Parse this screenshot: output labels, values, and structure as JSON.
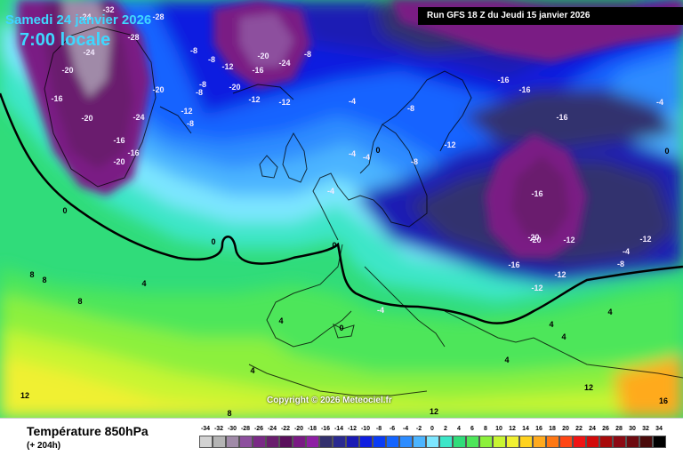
{
  "header": {
    "date": "Samedi 24 janvier 2026",
    "time": "7:00 locale",
    "run": "Run GFS 18 Z du Jeudi 15 janvier 2026"
  },
  "copyright": "Copyright © 2026 Meteociel.fr",
  "legend": {
    "title": "Température 850hPa",
    "subtitle": "(+ 204h)",
    "scale": [
      {
        "value": "-34",
        "color": "#d2d2d2"
      },
      {
        "value": "-32",
        "color": "#b4b4b4"
      },
      {
        "value": "-30",
        "color": "#a08aa8"
      },
      {
        "value": "-28",
        "color": "#8d4f9e"
      },
      {
        "value": "-26",
        "color": "#7a2a86"
      },
      {
        "value": "-24",
        "color": "#6a1e6e"
      },
      {
        "value": "-22",
        "color": "#5a0f5c"
      },
      {
        "value": "-20",
        "color": "#7a1a84"
      },
      {
        "value": "-18",
        "color": "#8e1fa4"
      },
      {
        "value": "-16",
        "color": "#33306e"
      },
      {
        "value": "-14",
        "color": "#2a2a90"
      },
      {
        "value": "-12",
        "color": "#1a1ab4"
      },
      {
        "value": "-10",
        "color": "#0f1ee0"
      },
      {
        "value": "-8",
        "color": "#0a3cf5"
      },
      {
        "value": "-6",
        "color": "#1464ff"
      },
      {
        "value": "-4",
        "color": "#2d8cff"
      },
      {
        "value": "-2",
        "color": "#4cb4ff"
      },
      {
        "value": "0",
        "color": "#7de6ff"
      },
      {
        "value": "2",
        "color": "#3ce6c8"
      },
      {
        "value": "4",
        "color": "#30dc7a"
      },
      {
        "value": "6",
        "color": "#4ee65a"
      },
      {
        "value": "8",
        "color": "#8cf03c"
      },
      {
        "value": "10",
        "color": "#c8f532"
      },
      {
        "value": "12",
        "color": "#f0f032"
      },
      {
        "value": "14",
        "color": "#ffd21e"
      },
      {
        "value": "16",
        "color": "#ffaa1e"
      },
      {
        "value": "18",
        "color": "#ff7814"
      },
      {
        "value": "20",
        "color": "#ff4614"
      },
      {
        "value": "22",
        "color": "#f01414"
      },
      {
        "value": "24",
        "color": "#d20a0a"
      },
      {
        "value": "26",
        "color": "#a80a0a"
      },
      {
        "value": "28",
        "color": "#8c0a14"
      },
      {
        "value": "30",
        "color": "#6e0a10"
      },
      {
        "value": "32",
        "color": "#4a0a0a"
      },
      {
        "value": "34",
        "color": "#000000"
      }
    ]
  },
  "isotherm_labels": [
    {
      "text": "-24"
    },
    {
      "text": "-32"
    },
    {
      "text": "-28"
    },
    {
      "text": "-28"
    },
    {
      "text": "-20"
    },
    {
      "text": "-16"
    },
    {
      "text": "-20"
    },
    {
      "text": "-24"
    },
    {
      "text": "-16"
    },
    {
      "text": "-20"
    },
    {
      "text": "-16"
    },
    {
      "text": "-24"
    },
    {
      "text": "-20"
    },
    {
      "text": "-8"
    },
    {
      "text": "-8"
    },
    {
      "text": "-12"
    },
    {
      "text": "-8"
    },
    {
      "text": "-20"
    },
    {
      "text": "-8"
    },
    {
      "text": "-12"
    },
    {
      "text": "-16"
    },
    {
      "text": "-20"
    },
    {
      "text": "-24"
    },
    {
      "text": "-8"
    },
    {
      "text": "-12"
    },
    {
      "text": "-8"
    },
    {
      "text": "-4"
    },
    {
      "text": "-8"
    },
    {
      "text": "-12"
    },
    {
      "text": "-4"
    },
    {
      "text": "0"
    },
    {
      "text": "-8"
    },
    {
      "text": "-4"
    },
    {
      "text": "-12"
    },
    {
      "text": "-16"
    },
    {
      "text": "-16"
    },
    {
      "text": "-16"
    },
    {
      "text": "-16"
    },
    {
      "text": "-20"
    },
    {
      "text": "-12"
    },
    {
      "text": "-16"
    },
    {
      "text": "-12"
    },
    {
      "text": "-4"
    },
    {
      "text": "-4"
    },
    {
      "text": "0"
    },
    {
      "text": "0"
    },
    {
      "text": "0"
    },
    {
      "text": "0"
    },
    {
      "text": "4"
    },
    {
      "text": "8"
    },
    {
      "text": "8"
    },
    {
      "text": "8"
    },
    {
      "text": "4"
    },
    {
      "text": "4"
    },
    {
      "text": "4"
    },
    {
      "text": "4"
    },
    {
      "text": "12"
    },
    {
      "text": "12"
    },
    {
      "text": "12"
    },
    {
      "text": "16"
    },
    {
      "text": "8"
    },
    {
      "text": "-12"
    },
    {
      "text": "-4"
    },
    {
      "text": "-20"
    },
    {
      "text": "-12"
    },
    {
      "text": "-8"
    },
    {
      "text": "-4"
    },
    {
      "text": "4"
    },
    {
      "text": "0"
    },
    {
      "text": "4"
    }
  ]
}
